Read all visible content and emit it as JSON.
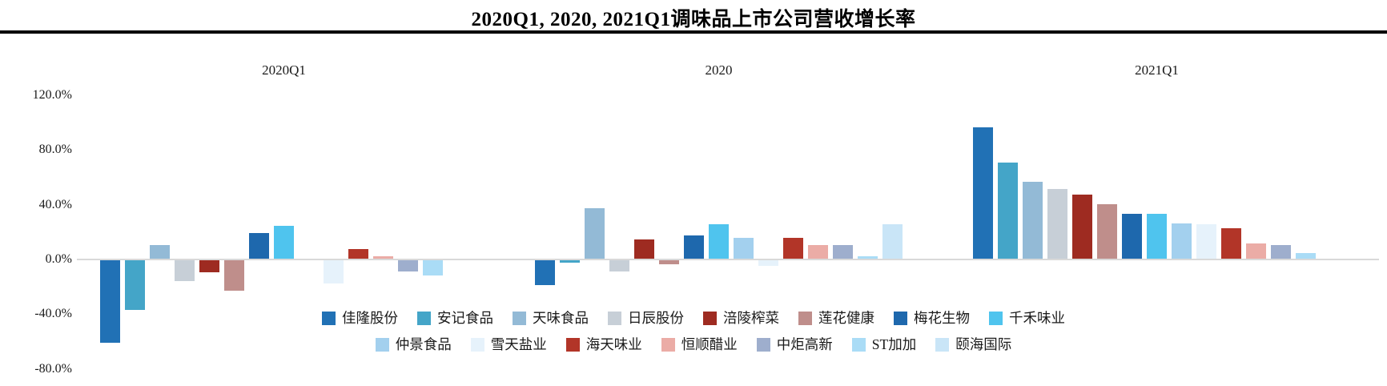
{
  "title": "2020Q1, 2020, 2021Q1调味品上市公司营收增长率",
  "chart_data": {
    "type": "bar",
    "title": "2020Q1, 2020, 2021Q1调味品上市公司营收增长率",
    "unit": "percent",
    "categories": [
      "2020Q1",
      "2020",
      "2021Q1"
    ],
    "ylim": [
      -80,
      120
    ],
    "ytick_values": [
      120,
      80,
      40,
      0,
      -40,
      -80
    ],
    "ytick_labels": [
      "120.0%",
      "80.0%",
      "40.0%",
      "0.0%",
      "-40.0%",
      "-80.0%"
    ],
    "grid": false,
    "legend_position": "bottom",
    "legend_rows": [
      8,
      7
    ],
    "baseline_color": "#d9d9d9",
    "series": [
      {
        "name": "佳隆股份",
        "color": "#2171B5",
        "values": [
          -60,
          -18,
          96
        ]
      },
      {
        "name": "安记食品",
        "color": "#44A5C8",
        "values": [
          -36,
          -2,
          70
        ]
      },
      {
        "name": "天味食品",
        "color": "#93BAD6",
        "values": [
          10,
          37,
          56
        ]
      },
      {
        "name": "日辰股份",
        "color": "#C7CFD7",
        "values": [
          -15,
          -8,
          51
        ]
      },
      {
        "name": "涪陵榨菜",
        "color": "#9E2B21",
        "values": [
          -9,
          14,
          47
        ]
      },
      {
        "name": "莲花健康",
        "color": "#BF8E8B",
        "values": [
          -22,
          -3,
          40
        ]
      },
      {
        "name": "梅花生物",
        "color": "#1E68AD",
        "values": [
          19,
          17,
          33
        ]
      },
      {
        "name": "千禾味业",
        "color": "#4FC4EE",
        "values": [
          24,
          25,
          33
        ]
      },
      {
        "name": "仲景食品",
        "color": "#A3D0EE",
        "values": [
          null,
          15,
          26
        ]
      },
      {
        "name": "雪天盐业",
        "color": "#E6F2FB",
        "values": [
          -17,
          -4,
          25
        ]
      },
      {
        "name": "海天味业",
        "color": "#B23528",
        "values": [
          7,
          15,
          22
        ]
      },
      {
        "name": "恒顺醋业",
        "color": "#EBACA6",
        "values": [
          2,
          10,
          11
        ]
      },
      {
        "name": "中炬高新",
        "color": "#9EAECD",
        "values": [
          -8,
          10,
          10
        ]
      },
      {
        "name": "ST加加",
        "color": "#AADCF6",
        "values": [
          -11,
          2,
          4
        ]
      },
      {
        "name": "颐海国际",
        "color": "#C9E5F7",
        "values": [
          null,
          25,
          null
        ]
      }
    ]
  }
}
